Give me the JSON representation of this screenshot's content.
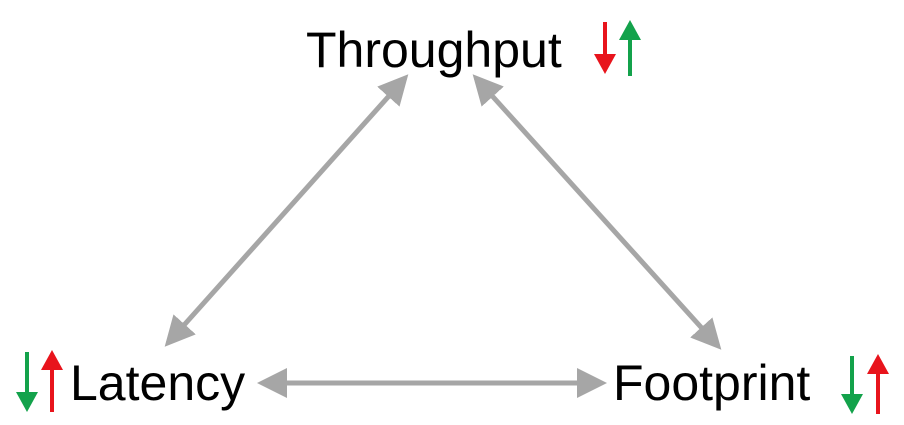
{
  "nodes": {
    "top": {
      "label": "Throughput"
    },
    "left": {
      "label": "Latency"
    },
    "right": {
      "label": "Footprint"
    }
  },
  "colors": {
    "edge": "#a6a6a6",
    "arrow_down_red": "#e8141c",
    "arrow_up_green": "#13a24b",
    "arrow_down_green": "#13a24b",
    "arrow_up_red": "#e8141c"
  },
  "indicators": {
    "throughput": [
      "down-red",
      "up-green"
    ],
    "latency": [
      "down-green",
      "up-red"
    ],
    "footprint": [
      "down-green",
      "up-red"
    ]
  }
}
